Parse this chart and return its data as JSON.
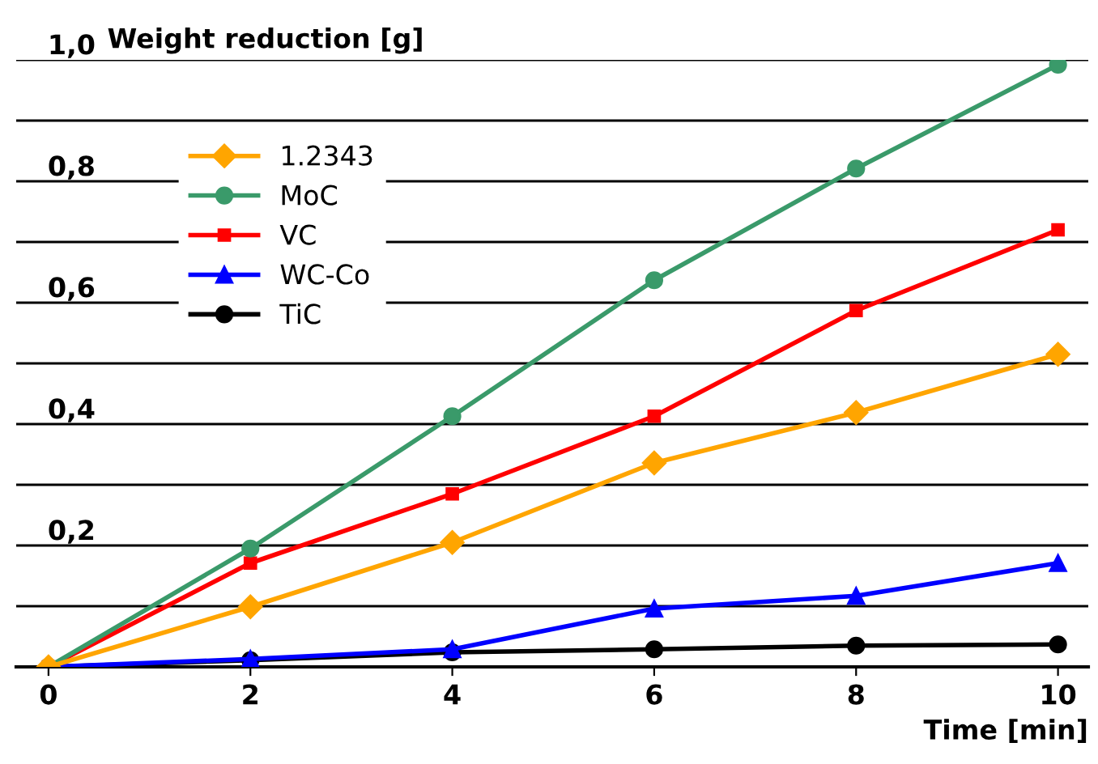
{
  "chart_data": {
    "type": "line",
    "ylabel": "Weight reduction [g]",
    "xlabel": "Time [min]",
    "x": [
      0,
      2,
      4,
      6,
      8,
      10
    ],
    "series": [
      {
        "name": "1.2343",
        "color": "#ffa500",
        "marker": "diamond",
        "values": [
          0,
          0.099,
          0.205,
          0.336,
          0.419,
          0.515
        ]
      },
      {
        "name": "MoC",
        "color": "#3a9a6a",
        "marker": "circle",
        "values": [
          0,
          0.195,
          0.413,
          0.637,
          0.821,
          0.992
        ]
      },
      {
        "name": "VC",
        "color": "#ff0000",
        "marker": "square",
        "values": [
          0,
          0.171,
          0.285,
          0.413,
          0.587,
          0.72
        ]
      },
      {
        "name": "WC-Co",
        "color": "#0000ff",
        "marker": "triangle",
        "values": [
          0,
          0.013,
          0.029,
          0.096,
          0.117,
          0.171
        ]
      },
      {
        "name": "TiC",
        "color": "#000000",
        "marker": "circle",
        "values": [
          0,
          0.011,
          0.024,
          0.029,
          0.035,
          0.037
        ]
      }
    ],
    "xlim": [
      -0.32,
      10.3
    ],
    "ylim": [
      0,
      1.0
    ],
    "xticks": [
      0,
      2,
      4,
      6,
      8,
      10
    ],
    "yticks": [
      {
        "value": 0,
        "label": null
      },
      {
        "value": 0.1,
        "label": null
      },
      {
        "value": 0.2,
        "label": "0,2"
      },
      {
        "value": 0.3,
        "label": null
      },
      {
        "value": 0.4,
        "label": "0,4"
      },
      {
        "value": 0.5,
        "label": null
      },
      {
        "value": 0.6,
        "label": "0,6"
      },
      {
        "value": 0.7,
        "label": null
      },
      {
        "value": 0.8,
        "label": "0,8"
      },
      {
        "value": 0.9,
        "label": null
      },
      {
        "value": 1.0,
        "label": "1,0"
      }
    ],
    "grid": "y",
    "legend": "top left",
    "line_style": "solid"
  }
}
